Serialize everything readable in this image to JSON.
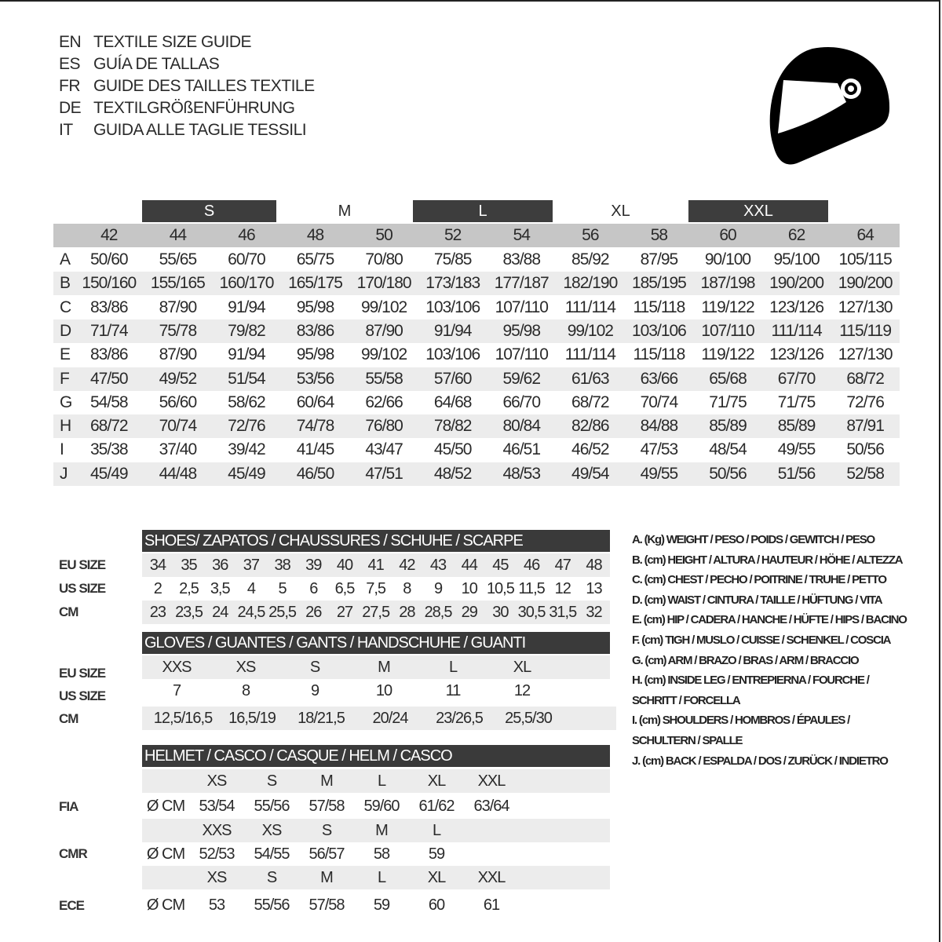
{
  "titles": [
    {
      "code": "EN",
      "text": "TEXTILE SIZE GUIDE"
    },
    {
      "code": "ES",
      "text": "GUÍA DE TALLAS"
    },
    {
      "code": "FR",
      "text": "GUIDE DES TAILLES TEXTILE"
    },
    {
      "code": "DE",
      "text": "TEXTILGRÖßENFÜHRUNG"
    },
    {
      "code": "IT",
      "text": "GUIDA ALLE TAGLIE TESSILI"
    }
  ],
  "icon": "helmet-icon",
  "colors": {
    "dark_band": "#3d3d3d",
    "header_gray": "#c6c6c6",
    "row_alt": "#ececec"
  },
  "textile": {
    "bands": [
      "S",
      "M",
      "L",
      "XL",
      "XXL"
    ],
    "sizes": [
      "42",
      "44",
      "46",
      "48",
      "50",
      "52",
      "54",
      "56",
      "58",
      "60",
      "62",
      "64"
    ],
    "rows": [
      {
        "label": "A",
        "values": [
          "50/60",
          "55/65",
          "60/70",
          "65/75",
          "70/80",
          "75/85",
          "83/88",
          "85/92",
          "87/95",
          "90/100",
          "95/100",
          "105/115"
        ]
      },
      {
        "label": "B",
        "values": [
          "150/160",
          "155/165",
          "160/170",
          "165/175",
          "170/180",
          "173/183",
          "177/187",
          "182/190",
          "185/195",
          "187/198",
          "190/200",
          "190/200"
        ]
      },
      {
        "label": "C",
        "values": [
          "83/86",
          "87/90",
          "91/94",
          "95/98",
          "99/102",
          "103/106",
          "107/110",
          "111/114",
          "115/118",
          "119/122",
          "123/126",
          "127/130"
        ]
      },
      {
        "label": "D",
        "values": [
          "71/74",
          "75/78",
          "79/82",
          "83/86",
          "87/90",
          "91/94",
          "95/98",
          "99/102",
          "103/106",
          "107/110",
          "111/114",
          "115/119"
        ]
      },
      {
        "label": "E",
        "values": [
          "83/86",
          "87/90",
          "91/94",
          "95/98",
          "99/102",
          "103/106",
          "107/110",
          "111/114",
          "115/118",
          "119/122",
          "123/126",
          "127/130"
        ]
      },
      {
        "label": "F",
        "values": [
          "47/50",
          "49/52",
          "51/54",
          "53/56",
          "55/58",
          "57/60",
          "59/62",
          "61/63",
          "63/66",
          "65/68",
          "67/70",
          "68/72"
        ]
      },
      {
        "label": "G",
        "values": [
          "54/58",
          "56/60",
          "58/62",
          "60/64",
          "62/66",
          "64/68",
          "66/70",
          "68/72",
          "70/74",
          "71/75",
          "71/75",
          "72/76"
        ]
      },
      {
        "label": "H",
        "values": [
          "68/72",
          "70/74",
          "72/76",
          "74/78",
          "76/80",
          "78/82",
          "80/84",
          "82/86",
          "84/88",
          "85/89",
          "85/89",
          "87/91"
        ]
      },
      {
        "label": "I",
        "values": [
          "35/38",
          "37/40",
          "39/42",
          "41/45",
          "43/47",
          "45/50",
          "46/51",
          "46/52",
          "47/53",
          "48/54",
          "49/55",
          "50/56"
        ]
      },
      {
        "label": "J",
        "values": [
          "45/49",
          "44/48",
          "45/49",
          "46/50",
          "47/51",
          "48/52",
          "48/53",
          "49/54",
          "49/55",
          "50/56",
          "51/56",
          "52/58"
        ]
      }
    ]
  },
  "shoes": {
    "title": "SHOES/ ZAPATOS / CHAUSSURES / SCHUHE / SCARPE",
    "rows": [
      {
        "label": "EU SIZE",
        "values": [
          "34",
          "35",
          "36",
          "37",
          "38",
          "39",
          "40",
          "41",
          "42",
          "43",
          "44",
          "45",
          "46",
          "47",
          "48"
        ]
      },
      {
        "label": "US SIZE",
        "values": [
          "2",
          "2,5",
          "3,5",
          "4",
          "5",
          "6",
          "6,5",
          "7,5",
          "8",
          "9",
          "10",
          "10,5",
          "11,5",
          "12",
          "13"
        ]
      },
      {
        "label": "CM",
        "values": [
          "23",
          "23,5",
          "24",
          "24,5",
          "25,5",
          "26",
          "27",
          "27,5",
          "28",
          "28,5",
          "29",
          "30",
          "30,5",
          "31,5",
          "32"
        ]
      }
    ]
  },
  "gloves": {
    "title": "GLOVES / GUANTES / GANTS / HANDSCHUHE / GUANTI",
    "rows": [
      {
        "label": "EU SIZE",
        "values": [
          "XXS",
          "XS",
          "S",
          "M",
          "L",
          "XL"
        ]
      },
      {
        "label": "US SIZE",
        "values": [
          "7",
          "8",
          "9",
          "10",
          "11",
          "12"
        ]
      },
      {
        "label": "CM",
        "values": [
          "12,5/16,5",
          "16,5/19",
          "18/21,5",
          "20/24",
          "23/26,5",
          "25,5/30"
        ]
      }
    ]
  },
  "helmet": {
    "title": "HELMET / CASCO / CASQUE / HELM / CASCO",
    "unit": "Ø CM",
    "standards": [
      {
        "label": "FIA",
        "sizes": [
          "XS",
          "S",
          "M",
          "L",
          "XL",
          "XXL"
        ],
        "values": [
          "53/54",
          "55/56",
          "57/58",
          "59/60",
          "61/62",
          "63/64"
        ]
      },
      {
        "label": "CMR",
        "sizes": [
          "XXS",
          "XS",
          "S",
          "M",
          "L"
        ],
        "values": [
          "52/53",
          "54/55",
          "56/57",
          "58",
          "59"
        ]
      },
      {
        "label": "ECE",
        "sizes": [
          "XS",
          "S",
          "M",
          "L",
          "XL",
          "XXL"
        ],
        "values": [
          "53",
          "55/56",
          "57/58",
          "59",
          "60",
          "61"
        ]
      }
    ]
  },
  "legend": [
    "A. (Kg) WEIGHT / PESO / POIDS / GEWITCH / PESO",
    "B. (cm) HEIGHT / ALTURA / HAUTEUR / HÖHE / ALTEZZA",
    "C. (cm) CHEST / PECHO / POITRINE / TRUHE / PETTO",
    "D. (cm) WAIST / CINTURA / TAILLE / HÜFTUNG / VITA",
    "E. (cm) HIP / CADERA / HANCHE / HÜFTE / HIPS /  BACINO",
    "F.  (cm) TIGH / MUSLO / CUISSE / SCHENKEL / COSCIA",
    "G. (cm) ARM  / BRAZO / BRAS / ARM / BRACCIO",
    "H. (cm) INSIDE LEG / ENTREPIERNA / FOURCHE /",
    "SCHRITT / FORCELLA",
    "I.  (cm) SHOULDERS / HOMBROS / ÉPAULES /",
    "SCHULTERN / SPALLE",
    "J. (cm) BACK / ESPALDA / DOS / ZURÜCK / INDIETRO"
  ]
}
